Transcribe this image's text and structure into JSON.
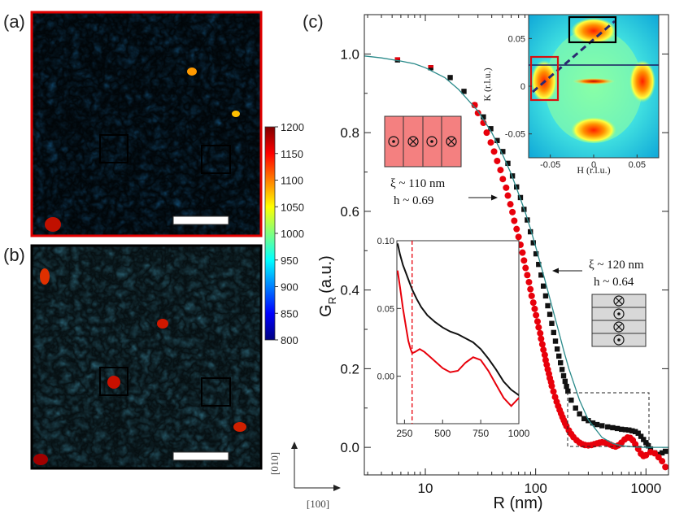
{
  "panels": {
    "a": {
      "label": "(a)",
      "border_color": "#e00000"
    },
    "b": {
      "label": "(b)",
      "border_color": "#000000"
    },
    "c": {
      "label": "(c)"
    }
  },
  "colorbar": {
    "ticks": [
      "1200",
      "1150",
      "1100",
      "1050",
      "1000",
      "950",
      "900",
      "850",
      "800"
    ],
    "colors": [
      "#00007f",
      "#0000ff",
      "#007fff",
      "#00ffff",
      "#7fff7f",
      "#ffff00",
      "#ff7f00",
      "#ff0000",
      "#7f0000"
    ]
  },
  "direction_labels": {
    "vertical": "[010]",
    "horizontal": "[100]"
  },
  "colors": {
    "series_red": "#e8000b",
    "series_black": "#111111",
    "fit_line": "#2a8a8a",
    "box_red": "#d81010"
  },
  "chart_data": [
    {
      "type": "scatter",
      "title": "",
      "xlabel": "R (nm)",
      "ylabel": "G",
      "ylabel_subscript": "R",
      "ylabel_units": "(a.u.)",
      "xscale": "log",
      "xlim": [
        2.8,
        1600
      ],
      "ylim": [
        -0.07,
        1.1
      ],
      "x_ticks": [
        10,
        100,
        1000
      ],
      "x_tick_labels": [
        "10",
        "100",
        "1000"
      ],
      "y_ticks": [
        0.0,
        0.2,
        0.4,
        0.6,
        0.8,
        1.0
      ],
      "y_tick_labels": [
        "0.0",
        "0.2",
        "0.4",
        "0.6",
        "0.8",
        "1.0"
      ],
      "series": [
        {
          "color": "#111111",
          "marker": "square",
          "x": [
            5.6,
            11.2,
            16.8,
            22.4,
            28,
            33.6,
            39.2,
            44.8,
            50.4,
            56,
            61.6,
            67.2,
            72.8,
            78.4,
            84,
            89.6,
            95.2,
            100.8,
            106.4,
            112,
            117.6,
            123.2,
            128.8,
            134.4,
            140,
            145.6,
            151.2,
            156.8,
            162.4,
            168,
            173.6,
            179.2,
            184.8,
            190.4,
            196,
            210,
            230,
            250,
            275,
            300,
            330,
            360,
            400,
            450,
            500,
            550,
            600,
            650,
            700,
            750,
            800,
            850,
            900,
            950,
            1000,
            1050,
            1100,
            1200,
            1300,
            1400,
            1500
          ],
          "y": [
            0.985,
            0.965,
            0.94,
            0.905,
            0.87,
            0.84,
            0.81,
            0.78,
            0.752,
            0.722,
            0.69,
            0.662,
            0.635,
            0.605,
            0.578,
            0.548,
            0.52,
            0.492,
            0.465,
            0.438,
            0.41,
            0.385,
            0.36,
            0.338,
            0.315,
            0.292,
            0.27,
            0.25,
            0.232,
            0.215,
            0.198,
            0.182,
            0.168,
            0.155,
            0.143,
            0.12,
            0.1,
            0.085,
            0.073,
            0.068,
            0.062,
            0.058,
            0.055,
            0.052,
            0.05,
            0.048,
            0.046,
            0.045,
            0.044,
            0.042,
            0.04,
            0.036,
            0.028,
            0.02,
            0.012,
            0.004,
            -0.004,
            -0.014,
            -0.018,
            -0.014,
            -0.01
          ]
        },
        {
          "color": "#e8000b",
          "marker": "circle",
          "x": [
            28,
            30,
            33.6,
            36,
            39.2,
            42,
            44.8,
            48,
            50.4,
            54,
            56,
            59,
            61.6,
            64,
            67.2,
            70,
            72.8,
            76,
            78.4,
            81,
            84,
            87,
            89.6,
            92,
            95.2,
            98,
            100.8,
            104,
            106.4,
            110,
            112,
            115,
            117.6,
            121,
            123.2,
            126,
            128.8,
            132,
            134.4,
            138,
            140,
            145,
            150,
            155,
            160,
            165,
            170,
            175,
            180,
            185,
            190,
            200,
            210,
            220,
            235,
            250,
            265,
            280,
            300,
            320,
            340,
            360,
            380,
            400,
            425,
            450,
            475,
            500,
            530,
            560,
            600,
            640,
            680,
            720,
            760,
            800,
            850,
            900,
            950,
            1000,
            1100,
            1200,
            1300,
            1400,
            1500
          ],
          "y": [
            0.87,
            0.85,
            0.825,
            0.8,
            0.775,
            0.752,
            0.728,
            0.705,
            0.682,
            0.66,
            0.64,
            0.618,
            0.598,
            0.576,
            0.555,
            0.535,
            0.515,
            0.495,
            0.475,
            0.456,
            0.438,
            0.42,
            0.402,
            0.385,
            0.368,
            0.352,
            0.336,
            0.32,
            0.305,
            0.29,
            0.276,
            0.262,
            0.248,
            0.235,
            0.222,
            0.21,
            0.198,
            0.187,
            0.176,
            0.166,
            0.156,
            0.142,
            0.128,
            0.116,
            0.105,
            0.095,
            0.086,
            0.077,
            0.069,
            0.061,
            0.054,
            0.043,
            0.034,
            0.026,
            0.018,
            0.012,
            0.008,
            0.006,
            0.005,
            0.006,
            0.008,
            0.01,
            0.012,
            0.013,
            0.012,
            0.01,
            0.007,
            0.004,
            0.002,
            0.005,
            0.012,
            0.02,
            0.025,
            0.024,
            0.018,
            0.008,
            -0.004,
            -0.016,
            -0.022,
            -0.02,
            -0.012,
            -0.015,
            -0.025,
            -0.035,
            -0.05
          ]
        },
        {
          "color": "#2a8a8a",
          "marker": "line",
          "x": [
            2.8,
            4,
            6,
            8,
            10,
            15,
            20,
            30,
            40,
            50,
            60,
            70,
            80,
            90,
            100,
            120,
            140,
            160,
            180,
            200,
            250,
            300,
            400,
            500,
            600,
            800,
            1000,
            1300,
            1600
          ],
          "y": [
            0.995,
            0.99,
            0.982,
            0.975,
            0.965,
            0.94,
            0.91,
            0.855,
            0.8,
            0.745,
            0.695,
            0.645,
            0.6,
            0.555,
            0.51,
            0.43,
            0.36,
            0.3,
            0.245,
            0.2,
            0.12,
            0.07,
            0.025,
            0.01,
            0.004,
            0.001,
            0.0,
            0.0,
            0.0
          ]
        }
      ],
      "annotations": [
        {
          "line1": "ξ ~ 110 nm",
          "line2": "h ~ 0.69"
        },
        {
          "line1": "ξ ~ 120 nm",
          "line2": "h ~ 0.64"
        }
      ]
    },
    {
      "type": "scatter",
      "title": "",
      "xlabel": "",
      "ylabel": "",
      "xlim": [
        200,
        1000
      ],
      "ylim": [
        -0.035,
        0.1
      ],
      "x_tick_labels": [
        "250",
        "500",
        "750",
        "1000"
      ],
      "y_tick_labels": [
        "0.10",
        "0.05",
        "0.00"
      ],
      "dashed_vline_x": 300,
      "series": [
        {
          "color": "#111111",
          "x": [
            205,
            220,
            240,
            260,
            280,
            300,
            330,
            360,
            400,
            450,
            500,
            550,
            600,
            650,
            700,
            750,
            800,
            850,
            900,
            950,
            1000
          ],
          "y": [
            0.098,
            0.09,
            0.082,
            0.076,
            0.07,
            0.064,
            0.057,
            0.051,
            0.045,
            0.04,
            0.036,
            0.033,
            0.031,
            0.028,
            0.025,
            0.02,
            0.013,
            0.005,
            -0.004,
            -0.01,
            -0.014
          ]
        },
        {
          "color": "#e8000b",
          "x": [
            205,
            220,
            240,
            260,
            275,
            290,
            300,
            320,
            350,
            380,
            420,
            460,
            500,
            550,
            600,
            650,
            700,
            750,
            800,
            850,
            900,
            950,
            1000
          ],
          "y": [
            0.078,
            0.066,
            0.05,
            0.036,
            0.026,
            0.02,
            0.017,
            0.018,
            0.02,
            0.018,
            0.014,
            0.01,
            0.006,
            0.003,
            0.004,
            0.01,
            0.014,
            0.012,
            0.004,
            -0.006,
            -0.016,
            -0.022,
            -0.016
          ]
        }
      ]
    },
    {
      "type": "heatmap",
      "title": "",
      "xlabel": "H (r.l.u.)",
      "ylabel": "K (r.l.u.)",
      "xlim": [
        -0.075,
        0.075
      ],
      "ylim": [
        -0.075,
        0.075
      ],
      "x_tick_labels": [
        "-0.05",
        "0",
        "0.05"
      ],
      "y_tick_labels": [
        "0.05",
        "0",
        "-0.05"
      ],
      "peaks": [
        {
          "h": -0.06,
          "k": 0.0
        },
        {
          "h": 0.06,
          "k": 0.0
        },
        {
          "h": 0.0,
          "k": 0.06
        },
        {
          "h": 0.0,
          "k": -0.06
        }
      ]
    }
  ]
}
